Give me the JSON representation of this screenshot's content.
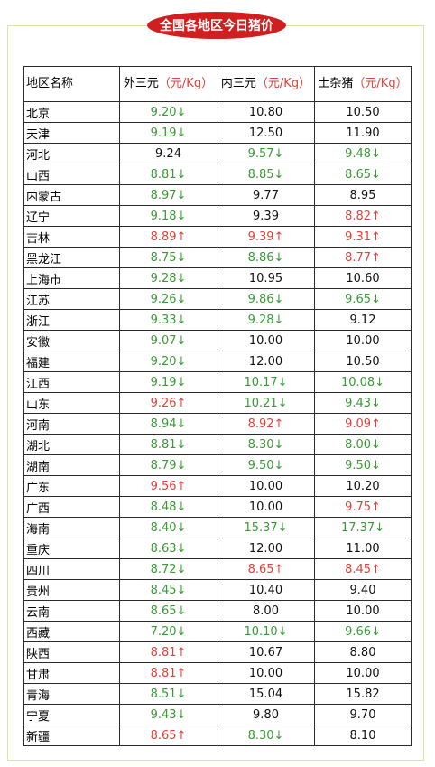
{
  "title": "全国各地区今日猪价",
  "colors": {
    "up": "#e0413a",
    "down": "#3a9a36",
    "flat": "#111111",
    "badge": "#cf1f1f"
  },
  "header": {
    "region": "地区名称",
    "cols": [
      {
        "name": "外三元",
        "unit": "（元/Kg）"
      },
      {
        "name": "内三元",
        "unit": "（元/Kg）"
      },
      {
        "name": "土杂猪",
        "unit": "（元/Kg）"
      }
    ]
  },
  "rows": [
    {
      "region": "北京",
      "prices": [
        {
          "value": "9.20",
          "trend": "down"
        },
        {
          "value": "10.80",
          "trend": "flat"
        },
        {
          "value": "10.50",
          "trend": "flat"
        }
      ]
    },
    {
      "region": "天津",
      "prices": [
        {
          "value": "9.19",
          "trend": "down"
        },
        {
          "value": "12.50",
          "trend": "flat"
        },
        {
          "value": "11.90",
          "trend": "flat"
        }
      ]
    },
    {
      "region": "河北",
      "prices": [
        {
          "value": "9.24",
          "trend": "flat"
        },
        {
          "value": "9.57",
          "trend": "down"
        },
        {
          "value": "9.48",
          "trend": "down"
        }
      ]
    },
    {
      "region": "山西",
      "prices": [
        {
          "value": "8.81",
          "trend": "down"
        },
        {
          "value": "8.85",
          "trend": "down"
        },
        {
          "value": "8.65",
          "trend": "down"
        }
      ]
    },
    {
      "region": "内蒙古",
      "prices": [
        {
          "value": "8.97",
          "trend": "down"
        },
        {
          "value": "9.77",
          "trend": "flat"
        },
        {
          "value": "8.95",
          "trend": "flat"
        }
      ]
    },
    {
      "region": "辽宁",
      "prices": [
        {
          "value": "9.18",
          "trend": "down"
        },
        {
          "value": "9.39",
          "trend": "flat"
        },
        {
          "value": "8.82",
          "trend": "up"
        }
      ]
    },
    {
      "region": "吉林",
      "prices": [
        {
          "value": "8.89",
          "trend": "up"
        },
        {
          "value": "9.39",
          "trend": "up"
        },
        {
          "value": "9.31",
          "trend": "up"
        }
      ]
    },
    {
      "region": "黑龙江",
      "prices": [
        {
          "value": "8.75",
          "trend": "down"
        },
        {
          "value": "8.86",
          "trend": "down"
        },
        {
          "value": "8.77",
          "trend": "up"
        }
      ]
    },
    {
      "region": "上海市",
      "prices": [
        {
          "value": "9.28",
          "trend": "down"
        },
        {
          "value": "10.95",
          "trend": "flat"
        },
        {
          "value": "10.60",
          "trend": "flat"
        }
      ]
    },
    {
      "region": "江苏",
      "prices": [
        {
          "value": "9.26",
          "trend": "down"
        },
        {
          "value": "9.86",
          "trend": "down"
        },
        {
          "value": "9.65",
          "trend": "down"
        }
      ]
    },
    {
      "region": "浙江",
      "prices": [
        {
          "value": "9.33",
          "trend": "down"
        },
        {
          "value": "9.28",
          "trend": "down"
        },
        {
          "value": "9.12",
          "trend": "flat"
        }
      ]
    },
    {
      "region": "安徽",
      "prices": [
        {
          "value": "9.07",
          "trend": "down"
        },
        {
          "value": "10.00",
          "trend": "flat"
        },
        {
          "value": "10.00",
          "trend": "flat"
        }
      ]
    },
    {
      "region": "福建",
      "prices": [
        {
          "value": "9.20",
          "trend": "down"
        },
        {
          "value": "12.00",
          "trend": "flat"
        },
        {
          "value": "10.50",
          "trend": "flat"
        }
      ]
    },
    {
      "region": "江西",
      "prices": [
        {
          "value": "9.19",
          "trend": "down"
        },
        {
          "value": "10.17",
          "trend": "down"
        },
        {
          "value": "10.08",
          "trend": "down"
        }
      ]
    },
    {
      "region": "山东",
      "prices": [
        {
          "value": "9.26",
          "trend": "up"
        },
        {
          "value": "10.21",
          "trend": "down"
        },
        {
          "value": "9.43",
          "trend": "down"
        }
      ]
    },
    {
      "region": "河南",
      "prices": [
        {
          "value": "8.94",
          "trend": "down"
        },
        {
          "value": "8.92",
          "trend": "up"
        },
        {
          "value": "9.09",
          "trend": "up"
        }
      ]
    },
    {
      "region": "湖北",
      "prices": [
        {
          "value": "8.81",
          "trend": "down"
        },
        {
          "value": "8.30",
          "trend": "down"
        },
        {
          "value": "8.00",
          "trend": "down"
        }
      ]
    },
    {
      "region": "湖南",
      "prices": [
        {
          "value": "8.79",
          "trend": "down"
        },
        {
          "value": "9.50",
          "trend": "down"
        },
        {
          "value": "9.50",
          "trend": "down"
        }
      ]
    },
    {
      "region": "广东",
      "prices": [
        {
          "value": "9.56",
          "trend": "up"
        },
        {
          "value": "10.00",
          "trend": "flat"
        },
        {
          "value": "10.20",
          "trend": "flat"
        }
      ]
    },
    {
      "region": "广西",
      "prices": [
        {
          "value": "8.48",
          "trend": "down"
        },
        {
          "value": "10.00",
          "trend": "flat"
        },
        {
          "value": "9.75",
          "trend": "up"
        }
      ]
    },
    {
      "region": "海南",
      "prices": [
        {
          "value": "8.40",
          "trend": "down"
        },
        {
          "value": "15.37",
          "trend": "down"
        },
        {
          "value": "17.37",
          "trend": "down"
        }
      ]
    },
    {
      "region": "重庆",
      "prices": [
        {
          "value": "8.63",
          "trend": "down"
        },
        {
          "value": "12.00",
          "trend": "flat"
        },
        {
          "value": "11.00",
          "trend": "flat"
        }
      ]
    },
    {
      "region": "四川",
      "prices": [
        {
          "value": "8.72",
          "trend": "down"
        },
        {
          "value": "8.65",
          "trend": "up"
        },
        {
          "value": "8.45",
          "trend": "up"
        }
      ]
    },
    {
      "region": "贵州",
      "prices": [
        {
          "value": "8.45",
          "trend": "down"
        },
        {
          "value": "10.40",
          "trend": "flat"
        },
        {
          "value": "9.40",
          "trend": "flat"
        }
      ]
    },
    {
      "region": "云南",
      "prices": [
        {
          "value": "8.65",
          "trend": "down"
        },
        {
          "value": "8.00",
          "trend": "flat"
        },
        {
          "value": "10.00",
          "trend": "flat"
        }
      ]
    },
    {
      "region": "西藏",
      "prices": [
        {
          "value": "7.20",
          "trend": "down"
        },
        {
          "value": "10.10",
          "trend": "down"
        },
        {
          "value": "9.66",
          "trend": "down"
        }
      ]
    },
    {
      "region": "陕西",
      "prices": [
        {
          "value": "8.81",
          "trend": "up"
        },
        {
          "value": "10.67",
          "trend": "flat"
        },
        {
          "value": "8.80",
          "trend": "flat"
        }
      ]
    },
    {
      "region": "甘肃",
      "prices": [
        {
          "value": "8.81",
          "trend": "up"
        },
        {
          "value": "10.00",
          "trend": "flat"
        },
        {
          "value": "10.00",
          "trend": "flat"
        }
      ]
    },
    {
      "region": "青海",
      "prices": [
        {
          "value": "8.51",
          "trend": "down"
        },
        {
          "value": "15.04",
          "trend": "flat"
        },
        {
          "value": "15.82",
          "trend": "flat"
        }
      ]
    },
    {
      "region": "宁夏",
      "prices": [
        {
          "value": "9.43",
          "trend": "down"
        },
        {
          "value": "9.80",
          "trend": "flat"
        },
        {
          "value": "9.70",
          "trend": "flat"
        }
      ]
    },
    {
      "region": "新疆",
      "prices": [
        {
          "value": "8.65",
          "trend": "up"
        },
        {
          "value": "8.30",
          "trend": "down"
        },
        {
          "value": "8.10",
          "trend": "flat"
        }
      ]
    }
  ]
}
